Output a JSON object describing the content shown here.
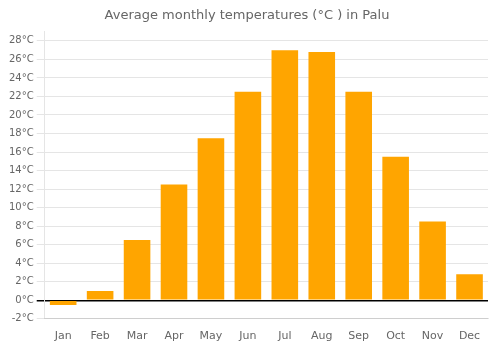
{
  "chart_data": {
    "type": "bar",
    "title": "Average monthly temperatures (°C ) in Palu",
    "categories": [
      "Jan",
      "Feb",
      "Mar",
      "Apr",
      "May",
      "Jun",
      "Jul",
      "Aug",
      "Sep",
      "Oct",
      "Nov",
      "Dec"
    ],
    "values": [
      -0.5,
      1.0,
      6.5,
      12.5,
      17.5,
      22.5,
      27.0,
      26.8,
      22.5,
      15.5,
      8.5,
      2.8
    ],
    "color": "#FFA500",
    "ylim": [
      -2,
      29
    ],
    "yticks": [
      {
        "value": -2,
        "label": "-2°C"
      },
      {
        "value": 0,
        "label": "0°C"
      },
      {
        "value": 2,
        "label": "2°C"
      },
      {
        "value": 4,
        "label": "4°C"
      },
      {
        "value": 6,
        "label": "6°C"
      },
      {
        "value": 8,
        "label": "8°C"
      },
      {
        "value": 10,
        "label": "10°C"
      },
      {
        "value": 12,
        "label": "12°C"
      },
      {
        "value": 14,
        "label": "14°C"
      },
      {
        "value": 16,
        "label": "16°C"
      },
      {
        "value": 18,
        "label": "18°C"
      },
      {
        "value": 20,
        "label": "20°C"
      },
      {
        "value": 22,
        "label": "22°C"
      },
      {
        "value": 24,
        "label": "24°C"
      },
      {
        "value": 26,
        "label": "26°C"
      },
      {
        "value": 28,
        "label": "28°C"
      }
    ],
    "grid": true
  }
}
